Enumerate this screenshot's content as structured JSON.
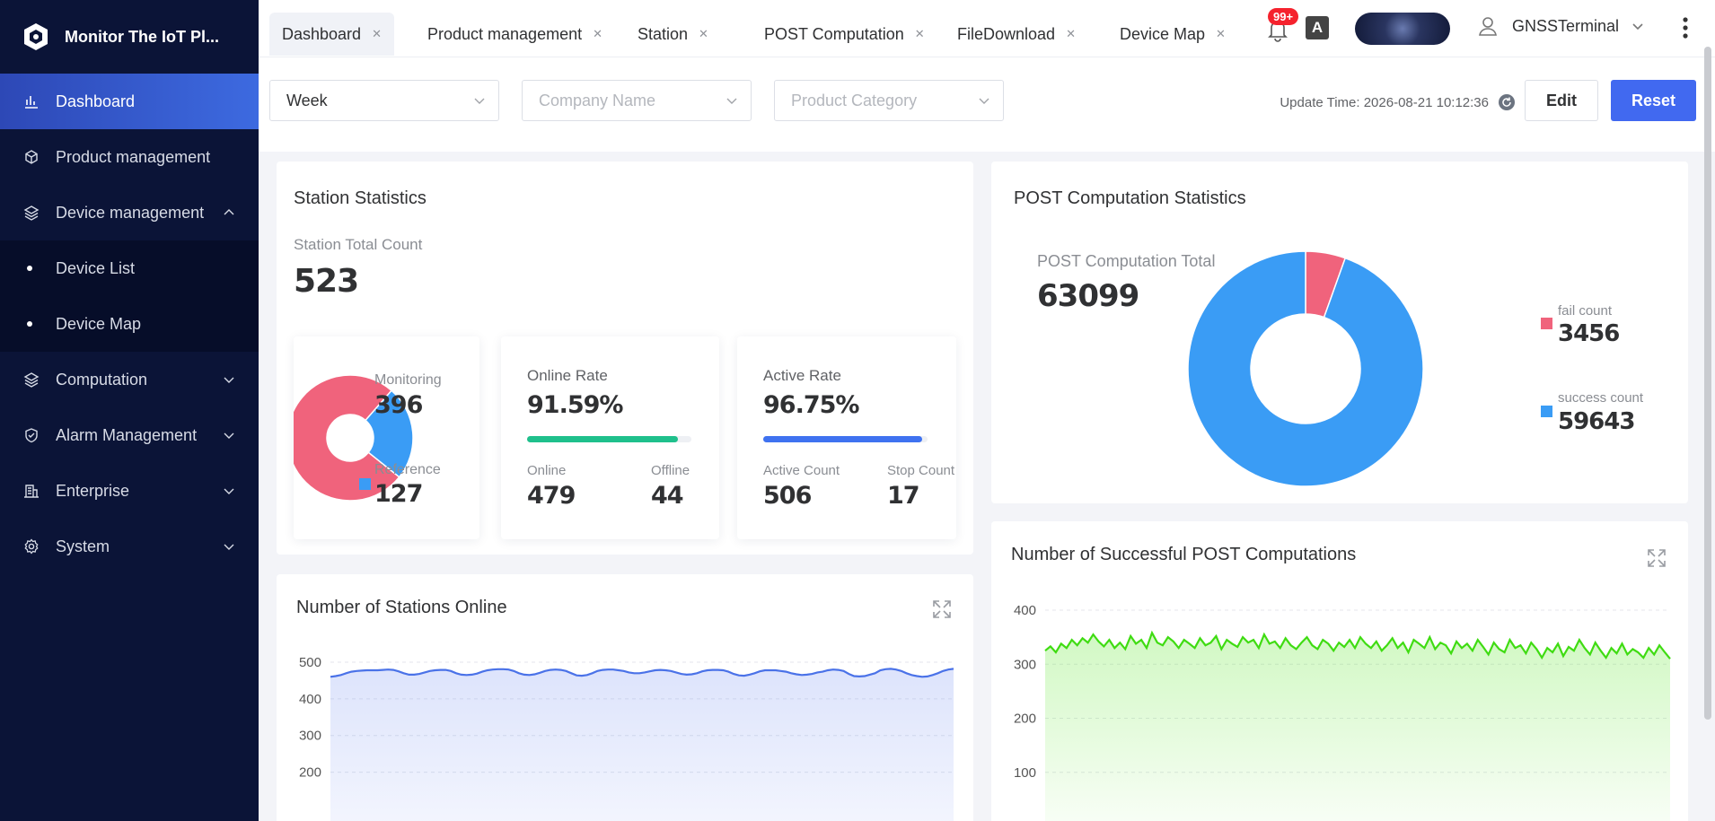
{
  "brand": {
    "title": "Monitor The IoT Pl..."
  },
  "sidebar": {
    "items": [
      {
        "label": "Dashboard",
        "icon": "bar-chart-icon"
      },
      {
        "label": "Product management",
        "icon": "cube-icon"
      },
      {
        "label": "Device management",
        "icon": "layers-icon"
      },
      {
        "label": "Device List"
      },
      {
        "label": "Device Map"
      },
      {
        "label": "Computation",
        "icon": "layers-icon"
      },
      {
        "label": "Alarm Management",
        "icon": "shield-icon"
      },
      {
        "label": "Enterprise",
        "icon": "building-icon"
      },
      {
        "label": "System",
        "icon": "gear-icon"
      }
    ]
  },
  "tabs": [
    {
      "label": "Dashboard"
    },
    {
      "label": "Product management"
    },
    {
      "label": "Station"
    },
    {
      "label": "POST Computation"
    },
    {
      "label": "FileDownload"
    },
    {
      "label": "Device Map"
    }
  ],
  "header": {
    "badge": "99+",
    "translate_glyph": "A",
    "username": "GNSSTerminal"
  },
  "filters": {
    "period": "Week",
    "company_placeholder": "Company Name",
    "category_placeholder": "Product Category",
    "update_time": "Update Time: 2026-08-21 10:12:36",
    "edit_label": "Edit",
    "reset_label": "Reset"
  },
  "station_stats": {
    "title": "Station Statistics",
    "total_label": "Station Total Count",
    "total": "523",
    "monitoring_label": "Monitoring",
    "monitoring": "396",
    "reference_label": "Reference",
    "reference": "127",
    "online_rate_label": "Online Rate",
    "online_rate": "91.59%",
    "online_rate_value": 0.9159,
    "online_label": "Online",
    "online": "479",
    "offline_label": "Offline",
    "offline": "44",
    "active_rate_label": "Active Rate",
    "active_rate": "96.75%",
    "active_rate_value": 0.9675,
    "active_count_label": "Active Count",
    "active_count": "506",
    "stop_count_label": "Stop Count",
    "stop_count": "17"
  },
  "post_stats": {
    "title": "POST Computation Statistics",
    "total_label": "POST Computation Total",
    "total": "63099",
    "fail_label": "fail count",
    "fail": "3456",
    "success_label": "success count",
    "success": "59643"
  },
  "online_chart": {
    "title": "Number of Stations Online"
  },
  "success_chart": {
    "title": "Number of Successful POST Computations"
  },
  "colors": {
    "accent": "#4169f0",
    "sidebar_bg": "#0b1437",
    "pie_red": "#f0637c",
    "pie_blue": "#3a9cf5",
    "online_bar": "#1fc08c",
    "active_bar": "#3f72f0",
    "line_blue": "#4a72e8",
    "line_green": "#3fdc12"
  },
  "chart_data": [
    {
      "type": "pie",
      "series": [
        {
          "name": "Monitoring",
          "value": 396
        },
        {
          "name": "Reference",
          "value": 127
        }
      ]
    },
    {
      "type": "pie",
      "series": [
        {
          "name": "fail count",
          "value": 3456
        },
        {
          "name": "success count",
          "value": 59643
        }
      ]
    },
    {
      "type": "area",
      "title": "Number of Stations Online",
      "y_ticks": [
        500,
        400,
        300,
        200
      ],
      "ylim": [
        150,
        500
      ],
      "values": [
        460,
        462,
        465,
        470,
        474,
        476,
        477,
        478,
        478,
        478,
        479,
        480,
        479,
        475,
        470,
        466,
        466,
        468,
        472,
        476,
        478,
        479,
        479,
        476,
        470,
        466,
        465,
        466,
        469,
        474,
        478,
        480,
        481,
        481,
        480,
        476,
        470,
        466,
        465,
        467,
        471,
        476,
        479,
        480,
        479,
        476,
        470,
        464,
        463,
        465,
        470,
        476,
        479,
        480,
        480,
        478,
        476,
        472,
        470,
        470,
        472,
        475,
        478,
        479,
        478,
        476,
        472,
        468,
        466,
        467,
        470,
        475,
        478,
        479,
        479,
        478,
        474,
        468,
        464,
        463,
        466,
        470,
        475,
        478,
        478,
        478,
        476,
        474,
        470,
        467,
        465,
        466,
        468,
        472,
        474,
        478,
        480,
        479,
        476,
        468,
        462,
        461,
        462,
        466,
        470,
        478,
        481,
        482,
        480,
        476,
        470,
        465,
        462,
        460,
        461,
        465,
        470,
        476,
        480,
        482
      ]
    },
    {
      "type": "area",
      "title": "Number of Successful POST Computations",
      "y_ticks": [
        400,
        300,
        200,
        100,
        0
      ],
      "ylim": [
        0,
        400
      ],
      "values": [
        325,
        333,
        322,
        338,
        330,
        345,
        335,
        348,
        340,
        355,
        342,
        333,
        345,
        330,
        340,
        328,
        352,
        338,
        345,
        330,
        358,
        340,
        335,
        350,
        342,
        330,
        345,
        338,
        330,
        348,
        335,
        340,
        352,
        328,
        345,
        338,
        332,
        350,
        340,
        345,
        330,
        355,
        338,
        342,
        330,
        348,
        335,
        328,
        340,
        350,
        335,
        328,
        345,
        338,
        325,
        340,
        332,
        345,
        330,
        350,
        338,
        330,
        342,
        325,
        335,
        348,
        330,
        340,
        322,
        345,
        338,
        330,
        350,
        328,
        340,
        335,
        320,
        342,
        330,
        338,
        325,
        345,
        332,
        318,
        340,
        328,
        322,
        345,
        330,
        335,
        320,
        340,
        328,
        312,
        330,
        322,
        338,
        315,
        332,
        325,
        345,
        330,
        318,
        340,
        325,
        312,
        330,
        320,
        338,
        318,
        328,
        322,
        312,
        330,
        318,
        335,
        322,
        310
      ]
    }
  ]
}
